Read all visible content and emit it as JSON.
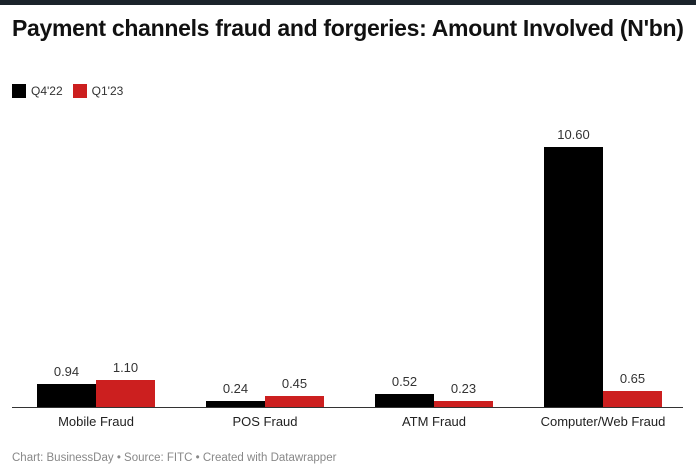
{
  "header": {
    "title": "Payment channels fraud and forgeries: Amount Involved (N'bn)"
  },
  "legend": [
    {
      "label": "Q4'22",
      "color": "#000000"
    },
    {
      "label": "Q1'23",
      "color": "#cc1f1f"
    }
  ],
  "footer": {
    "text": "Chart: BusinessDay • Source: FITC • Created with Datawrapper"
  },
  "chart_data": {
    "type": "bar",
    "title": "Payment channels fraud and forgeries: Amount Involved (N'bn)",
    "categories": [
      "Mobile Fraud",
      "POS Fraud",
      "ATM Fraud",
      "Computer/Web Fraud"
    ],
    "series": [
      {
        "name": "Q4'22",
        "color": "#000000",
        "values": [
          0.94,
          0.24,
          0.52,
          10.6
        ],
        "labels": [
          "0.94",
          "0.24",
          "0.52",
          "10.60"
        ]
      },
      {
        "name": "Q1'23",
        "color": "#cc1f1f",
        "values": [
          1.1,
          0.45,
          0.23,
          0.65
        ],
        "labels": [
          "1.10",
          "0.45",
          "0.23",
          "0.65"
        ]
      }
    ],
    "xlabel": "",
    "ylabel": "",
    "ylim": [
      0,
      10.6
    ],
    "grid": false,
    "legend_position": "top-left",
    "source": "Chart: BusinessDay • Source: FITC • Created with Datawrapper"
  }
}
